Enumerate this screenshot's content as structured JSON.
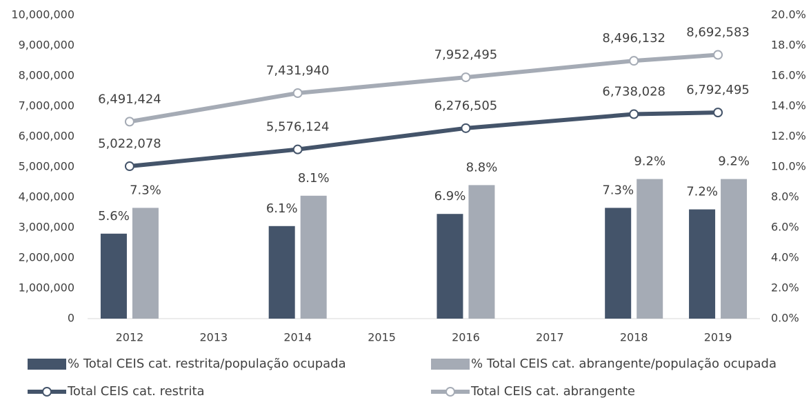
{
  "chart_data": {
    "type": "bar",
    "categories": [
      "2012",
      "2013",
      "2014",
      "2015",
      "2016",
      "2017",
      "2018",
      "2019"
    ],
    "series": [
      {
        "name": "% Total CEIS cat. restrita/população ocupada",
        "type": "bar",
        "axis": "y2",
        "color": "#44546a",
        "values": [
          5.6,
          null,
          6.1,
          null,
          6.9,
          null,
          7.3,
          7.2
        ],
        "value_labels": [
          "5.6%",
          null,
          "6.1%",
          null,
          "6.9%",
          null,
          "7.3%",
          "7.2%"
        ]
      },
      {
        "name": "% Total CEIS cat. abrangente/população ocupada",
        "type": "bar",
        "axis": "y2",
        "color": "#a5abb5",
        "values": [
          7.3,
          null,
          8.1,
          null,
          8.8,
          null,
          9.2,
          9.2
        ],
        "value_labels": [
          "7.3%",
          null,
          "8.1%",
          null,
          "8.8%",
          null,
          "9.2%",
          "9.2%"
        ]
      },
      {
        "name": "Total CEIS cat. restrita",
        "type": "line",
        "axis": "y",
        "color": "#44546a",
        "values": [
          5022078,
          null,
          5576124,
          null,
          6276505,
          null,
          6738028,
          6792495
        ],
        "value_labels": [
          "5,022,078",
          null,
          "5,576,124",
          null,
          "6,276,505",
          null,
          "6,738,028",
          "6,792,495"
        ]
      },
      {
        "name": "Total CEIS cat. abrangente",
        "type": "line",
        "axis": "y",
        "color": "#a5abb5",
        "values": [
          6491424,
          null,
          7431940,
          null,
          7952495,
          null,
          8496132,
          8692583
        ],
        "value_labels": [
          "6,491,424",
          null,
          "7,431,940",
          null,
          "7,952,495",
          null,
          "8,496,132",
          "8,692,583"
        ]
      }
    ],
    "ylim": [
      0,
      10000000
    ],
    "yticks": [
      0,
      {
        "value": 1000000,
        "label": "1,000,000"
      },
      {
        "value": 2000000,
        "label": "2,000,000"
      },
      {
        "value": 3000000,
        "label": "3,000,000"
      },
      {
        "value": 4000000,
        "label": "4,000,000"
      },
      {
        "value": 5000000,
        "label": "5,000,000"
      },
      {
        "value": 6000000,
        "label": "6,000,000"
      },
      {
        "value": 7000000,
        "label": "7,000,000"
      },
      {
        "value": 8000000,
        "label": "8,000,000"
      },
      {
        "value": 9000000,
        "label": "9,000,000"
      },
      {
        "value": 10000000,
        "label": "10,000,000"
      }
    ],
    "y2lim": [
      0,
      20
    ],
    "y2ticks": [
      {
        "value": 0,
        "label": "0.0%"
      },
      {
        "value": 2,
        "label": "2.0%"
      },
      {
        "value": 4,
        "label": "4.0%"
      },
      {
        "value": 6,
        "label": "6.0%"
      },
      {
        "value": 8,
        "label": "8.0%"
      },
      {
        "value": 10,
        "label": "10.0%"
      },
      {
        "value": 12,
        "label": "12.0%"
      },
      {
        "value": 14,
        "label": "14.0%"
      },
      {
        "value": 16,
        "label": "16.0%"
      },
      {
        "value": 18,
        "label": "18.0%"
      },
      {
        "value": 20,
        "label": "20.0%"
      }
    ],
    "grid": false
  }
}
